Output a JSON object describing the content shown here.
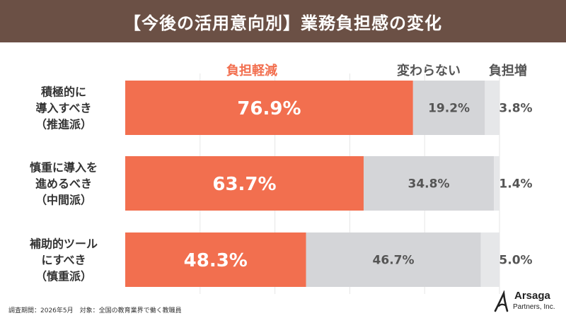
{
  "title": "【今後の活用意向別】業務負担感の変化",
  "footnote": "調査期間：2026年5月　対象：全国の教育業界で働く教職員",
  "logo": {
    "name": "Arsaga",
    "sub": "Partners, Inc."
  },
  "colors": {
    "header": "#6b5045",
    "reduce": "#f26f4f",
    "same": "#d4d5d8",
    "increase": "#e6e7e9",
    "label_reduce": "#f26f4f",
    "label_other": "#555555"
  },
  "chart_data": {
    "type": "bar",
    "orientation": "horizontal",
    "stacked": true,
    "title": "【今後の活用意向別】業務負担感の変化",
    "categories": [
      [
        "積極的に",
        "導入すべき",
        "（推進派）"
      ],
      [
        "慎重に導入を",
        "進めるべき",
        "（中間派）"
      ],
      [
        "補助的ツール",
        "にすべき",
        "（慎重派）"
      ]
    ],
    "series": [
      {
        "name": "負担軽減",
        "values": [
          76.9,
          63.7,
          48.3
        ],
        "labels": [
          "76.9%",
          "63.7%",
          "48.3%"
        ],
        "color": "#f26f4f"
      },
      {
        "name": "変わらない",
        "values": [
          19.2,
          34.8,
          46.7
        ],
        "labels": [
          "19.2%",
          "34.8%",
          "46.7%"
        ],
        "color": "#d4d5d8"
      },
      {
        "name": "負担増",
        "values": [
          3.8,
          1.4,
          5.0
        ],
        "labels": [
          "3.8%",
          "1.4%",
          "5.0%"
        ],
        "color": "#e6e7e9"
      }
    ],
    "xlim": [
      0,
      100
    ],
    "grid": true,
    "legend": "top"
  }
}
